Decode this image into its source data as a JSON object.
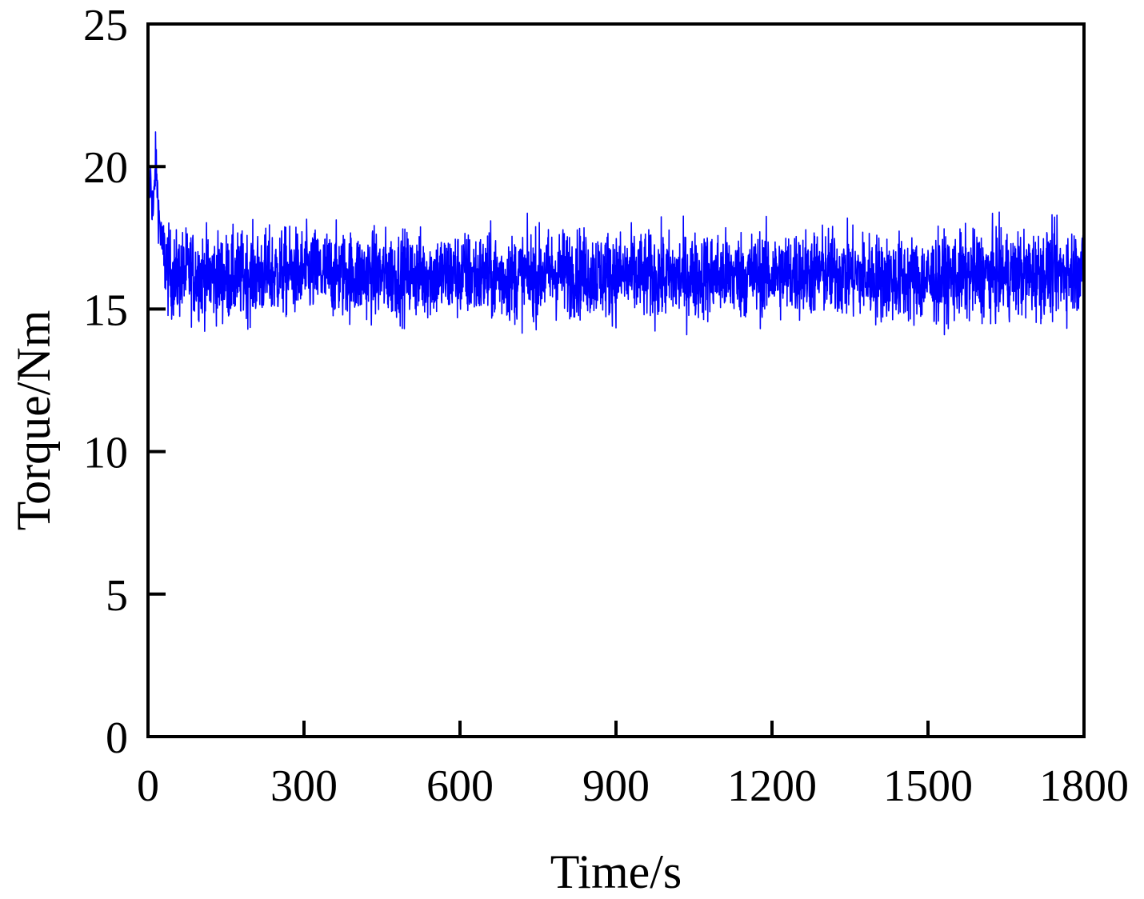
{
  "chart_data": {
    "type": "line",
    "title": "",
    "xlabel": "Time/s",
    "ylabel": "Torque/Nm",
    "xlim": [
      0,
      1800
    ],
    "ylim": [
      0,
      25
    ],
    "xticks": [
      "0",
      "300",
      "600",
      "900",
      "1200",
      "1500",
      "1800"
    ],
    "yticks": [
      "0",
      "5",
      "10",
      "15",
      "20",
      "25"
    ],
    "grid": false,
    "legend": "none",
    "series": [
      {
        "color": "#0000ff",
        "x": [
          0,
          5,
          10,
          15,
          20,
          25,
          30,
          40,
          50,
          60,
          75,
          100,
          150,
          200,
          300,
          400,
          500,
          600,
          700,
          800,
          900,
          1000,
          1100,
          1200,
          1300,
          1400,
          1500,
          1600,
          1700,
          1800
        ],
        "y": [
          18.7,
          19.6,
          18.2,
          20.4,
          18.5,
          17.5,
          16.9,
          16.3,
          16.1,
          16.2,
          16.3,
          16.2,
          16.1,
          16.2,
          16.3,
          16.2,
          16.2,
          16.2,
          16.1,
          16.3,
          16.2,
          16.1,
          16.2,
          16.2,
          16.3,
          16.1,
          16.0,
          16.2,
          16.2,
          16.4
        ],
        "noise_band": [
          14.1,
          18.4
        ]
      }
    ]
  }
}
